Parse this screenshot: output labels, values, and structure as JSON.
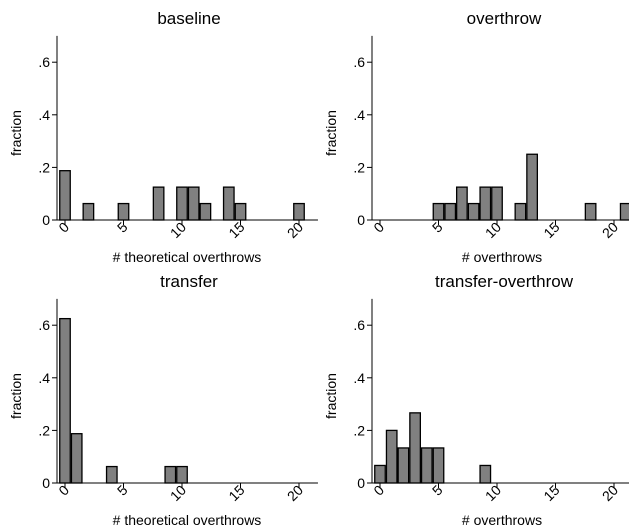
{
  "chart_data": [
    {
      "type": "bar",
      "title": "baseline",
      "xlabel": "# theoretical overthrows",
      "ylabel": "fraction",
      "xlim": [
        0,
        21
      ],
      "ylim": [
        0,
        0.7
      ],
      "x_ticks": [
        0,
        5,
        10,
        15,
        20
      ],
      "y_ticks": [
        0,
        0.2,
        0.4,
        0.6
      ],
      "y_tick_labels": [
        "0",
        ".2",
        ".4",
        ".6"
      ],
      "grid": false,
      "bars": [
        {
          "x": 0,
          "value": 0.1875
        },
        {
          "x": 2,
          "value": 0.0625
        },
        {
          "x": 5,
          "value": 0.0625
        },
        {
          "x": 8,
          "value": 0.125
        },
        {
          "x": 10,
          "value": 0.125
        },
        {
          "x": 11,
          "value": 0.125
        },
        {
          "x": 12,
          "value": 0.0625
        },
        {
          "x": 14,
          "value": 0.125
        },
        {
          "x": 15,
          "value": 0.0625
        },
        {
          "x": 20,
          "value": 0.0625
        }
      ]
    },
    {
      "type": "bar",
      "title": "overthrow",
      "xlabel": "# overthrows",
      "ylabel": "fraction",
      "xlim": [
        0,
        21
      ],
      "ylim": [
        0,
        0.7
      ],
      "x_ticks": [
        0,
        5,
        10,
        15,
        20
      ],
      "y_ticks": [
        0,
        0.2,
        0.4,
        0.6
      ],
      "y_tick_labels": [
        "0",
        ".2",
        ".4",
        ".6"
      ],
      "grid": false,
      "bars": [
        {
          "x": 5,
          "value": 0.0625
        },
        {
          "x": 6,
          "value": 0.0625
        },
        {
          "x": 7,
          "value": 0.125
        },
        {
          "x": 8,
          "value": 0.0625
        },
        {
          "x": 9,
          "value": 0.125
        },
        {
          "x": 10,
          "value": 0.125
        },
        {
          "x": 12,
          "value": 0.0625
        },
        {
          "x": 13,
          "value": 0.25
        },
        {
          "x": 18,
          "value": 0.0625
        },
        {
          "x": 21,
          "value": 0.0625
        }
      ]
    },
    {
      "type": "bar",
      "title": "transfer",
      "xlabel": "# theoretical overthrows",
      "ylabel": "fraction",
      "xlim": [
        0,
        21
      ],
      "ylim": [
        0,
        0.7
      ],
      "x_ticks": [
        0,
        5,
        10,
        15,
        20
      ],
      "y_ticks": [
        0,
        0.2,
        0.4,
        0.6
      ],
      "y_tick_labels": [
        "0",
        ".2",
        ".4",
        ".6"
      ],
      "grid": false,
      "bars": [
        {
          "x": 0,
          "value": 0.625
        },
        {
          "x": 1,
          "value": 0.1875
        },
        {
          "x": 4,
          "value": 0.0625
        },
        {
          "x": 9,
          "value": 0.0625
        },
        {
          "x": 10,
          "value": 0.0625
        }
      ]
    },
    {
      "type": "bar",
      "title": "transfer-overthrow",
      "xlabel": "# overthrows",
      "ylabel": "fraction",
      "xlim": [
        0,
        21
      ],
      "ylim": [
        0,
        0.7
      ],
      "x_ticks": [
        0,
        5,
        10,
        15,
        20
      ],
      "y_ticks": [
        0,
        0.2,
        0.4,
        0.6
      ],
      "y_tick_labels": [
        "0",
        ".2",
        ".4",
        ".6"
      ],
      "grid": false,
      "bars": [
        {
          "x": 0,
          "value": 0.0667
        },
        {
          "x": 1,
          "value": 0.2
        },
        {
          "x": 2,
          "value": 0.1333
        },
        {
          "x": 3,
          "value": 0.2667
        },
        {
          "x": 4,
          "value": 0.1333
        },
        {
          "x": 5,
          "value": 0.1333
        },
        {
          "x": 9,
          "value": 0.0667
        }
      ]
    }
  ]
}
